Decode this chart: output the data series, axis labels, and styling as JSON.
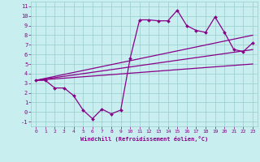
{
  "xlabel": "Windchill (Refroidissement éolien,°C)",
  "bg_color": "#c8eef0",
  "grid_color": "#99cccc",
  "line_color": "#880088",
  "label_color": "#880088",
  "spine_color": "#99cccc",
  "line1_x": [
    0,
    1,
    2,
    3,
    4,
    5,
    6,
    7,
    8,
    9,
    10,
    11,
    12,
    13,
    14,
    15,
    16,
    17,
    18,
    19,
    20,
    21,
    22,
    23
  ],
  "line1_y": [
    3.3,
    3.3,
    2.5,
    2.5,
    1.7,
    0.2,
    -0.7,
    0.3,
    -0.2,
    0.2,
    5.6,
    9.6,
    9.6,
    9.5,
    9.5,
    10.6,
    9.0,
    8.5,
    8.3,
    9.9,
    8.3,
    6.5,
    6.3,
    7.2
  ],
  "line2_x": [
    0,
    23
  ],
  "line2_y": [
    3.3,
    8.0
  ],
  "line3_x": [
    0,
    23
  ],
  "line3_y": [
    3.3,
    5.0
  ],
  "line4_x": [
    0,
    23
  ],
  "line4_y": [
    3.3,
    6.5
  ],
  "xlim": [
    -0.5,
    23.5
  ],
  "ylim": [
    -1.5,
    11.5
  ],
  "yticks": [
    -1,
    0,
    1,
    2,
    3,
    4,
    5,
    6,
    7,
    8,
    9,
    10,
    11
  ],
  "xticks": [
    0,
    1,
    2,
    3,
    4,
    5,
    6,
    7,
    8,
    9,
    10,
    11,
    12,
    13,
    14,
    15,
    16,
    17,
    18,
    19,
    20,
    21,
    22,
    23
  ]
}
